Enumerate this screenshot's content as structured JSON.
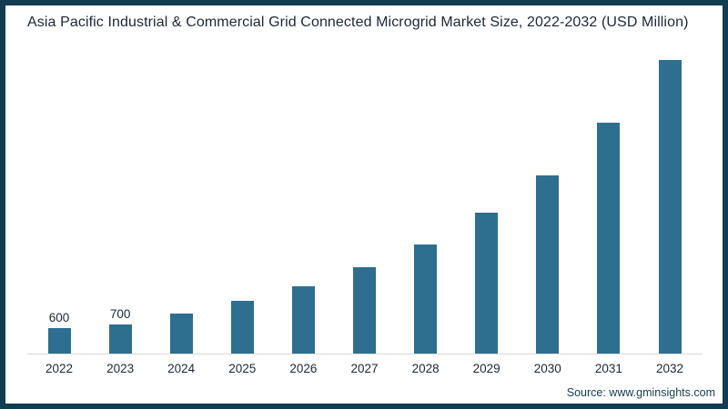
{
  "title": "Asia Pacific Industrial & Commercial Grid Connected Microgrid Market Size, 2022-2032 (USD Million)",
  "source": "Source: www.gminsights.com",
  "colors": {
    "bar": "#2e6e8e",
    "frame_border": "#113c52",
    "text": "#1c2734",
    "axis_line": "#d8d8d8"
  },
  "chart_data": {
    "type": "bar",
    "title": "Asia Pacific Industrial & Commercial Grid Connected Microgrid Market Size, 2022-2032 (USD Million)",
    "xlabel": "",
    "ylabel": "",
    "units": "USD Million",
    "categories": [
      "2022",
      "2023",
      "2024",
      "2025",
      "2026",
      "2027",
      "2028",
      "2029",
      "2030",
      "2031",
      "2032"
    ],
    "values": [
      600,
      700,
      950,
      1250,
      1600,
      2050,
      2600,
      3350,
      4250,
      5500,
      7000
    ],
    "data_labels": [
      "600",
      "700",
      "",
      "",
      "",
      "",
      "",
      "",
      "",
      "",
      ""
    ],
    "ylim": [
      0,
      7000
    ],
    "grid": false,
    "legend": false,
    "bar_color": "#2e6e8e"
  }
}
